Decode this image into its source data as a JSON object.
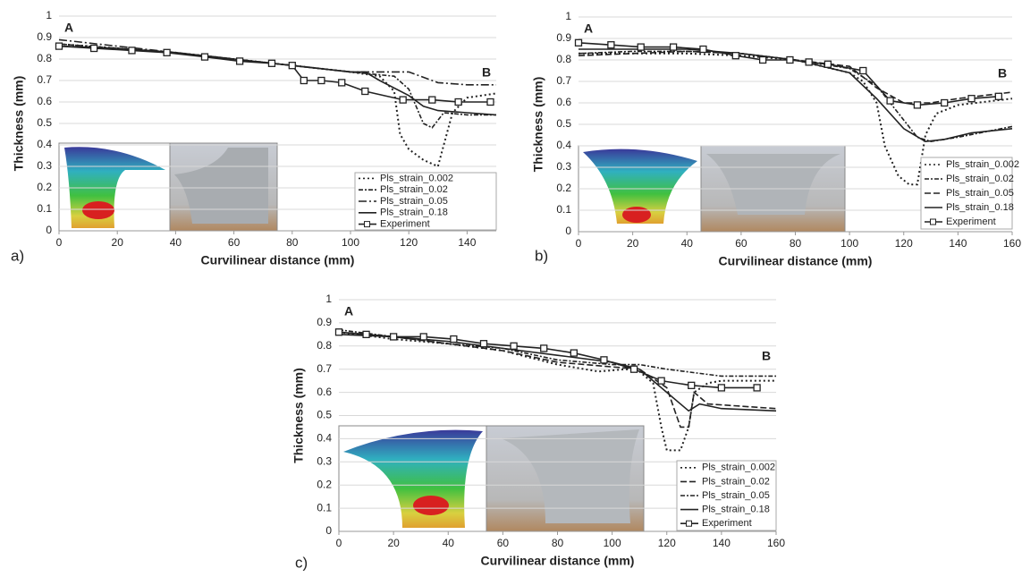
{
  "chart_data": [
    {
      "type": "line",
      "panel_label": "a)",
      "xlabel": "Curvilinear distance (mm)",
      "ylabel": "Thickness (mm)",
      "annotations": [
        "A",
        "B"
      ],
      "xlim": [
        0,
        150
      ],
      "ylim": [
        0,
        1
      ],
      "xticks": [
        0,
        20,
        40,
        60,
        80,
        100,
        120,
        140
      ],
      "yticks": [
        0,
        0.1,
        0.2,
        0.3,
        0.4,
        0.5,
        0.6,
        0.7,
        0.8,
        0.9,
        1
      ],
      "grid": true,
      "legend": "lower right",
      "series": [
        {
          "name": "Pls_strain_0.002",
          "color": "#222",
          "dash": "dotted",
          "x": [
            0,
            20,
            40,
            60,
            80,
            100,
            110,
            115,
            117,
            120,
            125,
            130,
            135,
            140,
            150
          ],
          "values": [
            0.87,
            0.85,
            0.83,
            0.8,
            0.77,
            0.74,
            0.72,
            0.65,
            0.45,
            0.38,
            0.33,
            0.3,
            0.55,
            0.62,
            0.64
          ]
        },
        {
          "name": "Pls_strain_0.02",
          "color": "#222",
          "dash": "dashdot",
          "x": [
            0,
            20,
            40,
            60,
            80,
            100,
            115,
            120,
            125,
            128,
            132,
            140,
            150
          ],
          "values": [
            0.87,
            0.85,
            0.83,
            0.8,
            0.77,
            0.74,
            0.72,
            0.66,
            0.5,
            0.48,
            0.55,
            0.54,
            0.54
          ]
        },
        {
          "name": "Pls_strain_0.05",
          "color": "#222",
          "dash": "longdashdot",
          "x": [
            0,
            20,
            40,
            60,
            80,
            100,
            110,
            120,
            130,
            140,
            150
          ],
          "values": [
            0.89,
            0.86,
            0.83,
            0.8,
            0.77,
            0.74,
            0.74,
            0.74,
            0.69,
            0.68,
            0.68
          ]
        },
        {
          "name": "Pls_strain_0.18",
          "color": "#222",
          "dash": "solid",
          "x": [
            0,
            20,
            40,
            60,
            80,
            100,
            105,
            110,
            120,
            125,
            130,
            140,
            150
          ],
          "values": [
            0.86,
            0.85,
            0.83,
            0.8,
            0.77,
            0.74,
            0.74,
            0.7,
            0.63,
            0.58,
            0.56,
            0.55,
            0.54
          ]
        },
        {
          "name": "Experiment",
          "color": "#222",
          "dash": "solid",
          "marker": "square",
          "x": [
            0,
            12,
            25,
            37,
            50,
            62,
            73,
            80,
            84,
            90,
            97,
            105,
            118,
            128,
            137,
            148
          ],
          "values": [
            0.86,
            0.85,
            0.84,
            0.83,
            0.81,
            0.79,
            0.78,
            0.77,
            0.7,
            0.7,
            0.69,
            0.65,
            0.61,
            0.61,
            0.6,
            0.6
          ]
        }
      ]
    },
    {
      "type": "line",
      "panel_label": "b)",
      "xlabel": "Curvilinear distance (mm)",
      "ylabel": "Thickness (mm)",
      "annotations": [
        "A",
        "B"
      ],
      "xlim": [
        0,
        160
      ],
      "ylim": [
        0,
        1
      ],
      "xticks": [
        0,
        20,
        40,
        60,
        80,
        100,
        120,
        140,
        160
      ],
      "yticks": [
        0,
        0.1,
        0.2,
        0.3,
        0.4,
        0.5,
        0.6,
        0.7,
        0.8,
        0.9,
        1
      ],
      "grid": true,
      "legend": "lower right",
      "series": [
        {
          "name": "Pls_strain_0.002",
          "color": "#222",
          "dash": "dotted",
          "x": [
            0,
            20,
            40,
            60,
            80,
            100,
            105,
            110,
            113,
            118,
            122,
            125,
            128,
            132,
            140,
            160
          ],
          "values": [
            0.83,
            0.83,
            0.83,
            0.82,
            0.8,
            0.74,
            0.7,
            0.6,
            0.4,
            0.26,
            0.22,
            0.22,
            0.45,
            0.55,
            0.59,
            0.62
          ]
        },
        {
          "name": "Pls_strain_0.02",
          "color": "#222",
          "dash": "dashdot",
          "x": [
            0,
            20,
            40,
            60,
            80,
            100,
            110,
            120,
            125,
            130,
            140,
            160
          ],
          "values": [
            0.83,
            0.84,
            0.84,
            0.83,
            0.8,
            0.76,
            0.68,
            0.52,
            0.44,
            0.42,
            0.44,
            0.49
          ]
        },
        {
          "name": "Pls_strain_0.05",
          "color": "#222",
          "dash": "dashed",
          "x": [
            0,
            20,
            40,
            60,
            80,
            100,
            110,
            120,
            130,
            140,
            160
          ],
          "values": [
            0.82,
            0.83,
            0.84,
            0.83,
            0.8,
            0.77,
            0.67,
            0.6,
            0.6,
            0.62,
            0.65
          ]
        },
        {
          "name": "Pls_strain_0.18",
          "color": "#222",
          "dash": "solid",
          "x": [
            0,
            20,
            40,
            60,
            80,
            100,
            110,
            120,
            128,
            135,
            145,
            160
          ],
          "values": [
            0.85,
            0.85,
            0.85,
            0.83,
            0.8,
            0.74,
            0.62,
            0.48,
            0.42,
            0.43,
            0.46,
            0.48
          ]
        },
        {
          "name": "Experiment",
          "color": "#222",
          "dash": "solid",
          "marker": "square",
          "x": [
            0,
            12,
            23,
            35,
            46,
            58,
            68,
            78,
            85,
            92,
            105,
            115,
            125,
            135,
            145,
            155
          ],
          "values": [
            0.88,
            0.87,
            0.86,
            0.86,
            0.85,
            0.82,
            0.8,
            0.8,
            0.79,
            0.78,
            0.75,
            0.61,
            0.59,
            0.6,
            0.62,
            0.63
          ]
        }
      ]
    },
    {
      "type": "line",
      "panel_label": "c)",
      "xlabel": "Curvilinear distance (mm)",
      "ylabel": "Thickness (mm)",
      "annotations": [
        "A",
        "B"
      ],
      "xlim": [
        0,
        160
      ],
      "ylim": [
        0,
        1
      ],
      "xticks": [
        0,
        20,
        40,
        60,
        80,
        100,
        120,
        140,
        160
      ],
      "yticks": [
        0,
        0.1,
        0.2,
        0.3,
        0.4,
        0.5,
        0.6,
        0.7,
        0.8,
        0.9,
        1
      ],
      "grid": true,
      "legend": "lower right",
      "series": [
        {
          "name": "Pls_strain_0.002",
          "color": "#222",
          "dash": "dotted",
          "x": [
            0,
            20,
            40,
            60,
            80,
            95,
            105,
            110,
            115,
            118,
            120,
            125,
            128,
            130,
            135,
            140,
            160
          ],
          "values": [
            0.86,
            0.83,
            0.81,
            0.78,
            0.72,
            0.69,
            0.7,
            0.69,
            0.64,
            0.45,
            0.35,
            0.35,
            0.45,
            0.6,
            0.64,
            0.65,
            0.65
          ]
        },
        {
          "name": "Pls_strain_0.02",
          "color": "#222",
          "dash": "dashed",
          "x": [
            0,
            20,
            40,
            60,
            80,
            100,
            110,
            120,
            125,
            128,
            130,
            135,
            160
          ],
          "values": [
            0.86,
            0.84,
            0.81,
            0.78,
            0.73,
            0.71,
            0.7,
            0.62,
            0.45,
            0.45,
            0.6,
            0.55,
            0.53
          ]
        },
        {
          "name": "Pls_strain_0.05",
          "color": "#222",
          "dash": "dashdot",
          "x": [
            0,
            20,
            40,
            60,
            80,
            100,
            110,
            120,
            140,
            160
          ],
          "values": [
            0.87,
            0.84,
            0.81,
            0.79,
            0.74,
            0.72,
            0.72,
            0.7,
            0.67,
            0.67
          ]
        },
        {
          "name": "Pls_strain_0.18",
          "color": "#222",
          "dash": "solid",
          "x": [
            0,
            20,
            40,
            60,
            80,
            100,
            110,
            120,
            125,
            128,
            132,
            140,
            160
          ],
          "values": [
            0.85,
            0.84,
            0.82,
            0.79,
            0.76,
            0.73,
            0.7,
            0.6,
            0.55,
            0.52,
            0.55,
            0.53,
            0.52
          ]
        },
        {
          "name": "Experiment",
          "color": "#222",
          "dash": "solid",
          "marker": "square",
          "x": [
            0,
            10,
            20,
            31,
            42,
            53,
            64,
            75,
            86,
            97,
            108,
            118,
            129,
            140,
            153
          ],
          "values": [
            0.86,
            0.85,
            0.84,
            0.84,
            0.83,
            0.81,
            0.8,
            0.79,
            0.77,
            0.74,
            0.7,
            0.65,
            0.63,
            0.62,
            0.62
          ]
        }
      ]
    }
  ]
}
